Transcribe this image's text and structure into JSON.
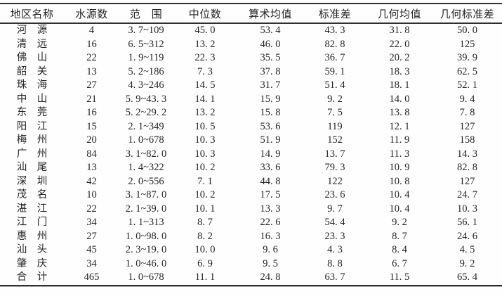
{
  "table": {
    "columns": [
      "地区名称",
      "水源数",
      "范　围",
      "中位数",
      "算术均值",
      "标准差",
      "几何均值",
      "几何标准差"
    ],
    "rows": [
      [
        "河　源",
        "4",
        "3. 7~109",
        "45. 0",
        "53. 4",
        "43. 3",
        "31. 8",
        "50. 0"
      ],
      [
        "清　远",
        "16",
        "6. 5~312",
        "13. 2",
        "46. 0",
        "82. 8",
        "22. 0",
        "125"
      ],
      [
        "佛　山",
        "22",
        "1. 9~119",
        "22. 3",
        "35. 5",
        "36. 7",
        "20. 2",
        "39. 9"
      ],
      [
        "韶　关",
        "13",
        "5. 2~186",
        "7. 3",
        "37. 8",
        "59. 1",
        "18. 3",
        "62. 5"
      ],
      [
        "珠　海",
        "27",
        "4. 3~246",
        "14. 5",
        "31. 7",
        "51. 4",
        "18. 1",
        "52. 1"
      ],
      [
        "中　山",
        "21",
        "5. 9~43. 3",
        "14. 1",
        "15. 9",
        "9. 2",
        "14. 0",
        "9. 4"
      ],
      [
        "东　莞",
        "16",
        "5. 2~29. 2",
        "13. 2",
        "15. 8",
        "7. 5",
        "13. 8",
        "7. 8"
      ],
      [
        "阳　江",
        "15",
        "2. 1~349",
        "10. 5",
        "53. 6",
        "119",
        "12. 1",
        "127"
      ],
      [
        "梅　州",
        "20",
        "1. 0~678",
        "10. 3",
        "51. 9",
        "152",
        "11. 9",
        "158"
      ],
      [
        "广　州",
        "84",
        "3. 1~82. 0",
        "10. 3",
        "14. 9",
        "13. 7",
        "11. 3",
        "14. 3"
      ],
      [
        "汕　尾",
        "13",
        "1. 4~322",
        "10. 2",
        "33. 6",
        "79. 3",
        "10. 9",
        "82. 8"
      ],
      [
        "深　圳",
        "42",
        "2. 0~556",
        "7. 1",
        "44. 8",
        "122",
        "10. 8",
        "127"
      ],
      [
        "茂　名",
        "10",
        "3. 1~87. 0",
        "10. 2",
        "17. 5",
        "23. 6",
        "10. 4",
        "24. 7"
      ],
      [
        "湛　江",
        "22",
        "2. 1~39. 0",
        "10. 1",
        "13. 3",
        "9. 7",
        "10. 4",
        "10. 3"
      ],
      [
        "江　门",
        "34",
        "1. 1~313",
        "8. 7",
        "22. 6",
        "54. 4",
        "9. 2",
        "56. 1"
      ],
      [
        "惠　州",
        "27",
        "1. 0~98. 0",
        "8. 2",
        "16. 3",
        "23. 3",
        "8. 7",
        "24. 6"
      ],
      [
        "汕　头",
        "45",
        "2. 3~19. 0",
        "10. 0",
        "9. 6",
        "4. 3",
        "8. 4",
        "4. 5"
      ],
      [
        "肇　庆",
        "34",
        "1. 0~46. 0",
        "6. 9",
        "9. 5",
        "8. 8",
        "6. 7",
        "9. 2"
      ],
      [
        "合　计",
        "465",
        "1. 0~678",
        "11. 1",
        "24. 8",
        "63. 7",
        "11. 5",
        "65. 4"
      ]
    ]
  }
}
